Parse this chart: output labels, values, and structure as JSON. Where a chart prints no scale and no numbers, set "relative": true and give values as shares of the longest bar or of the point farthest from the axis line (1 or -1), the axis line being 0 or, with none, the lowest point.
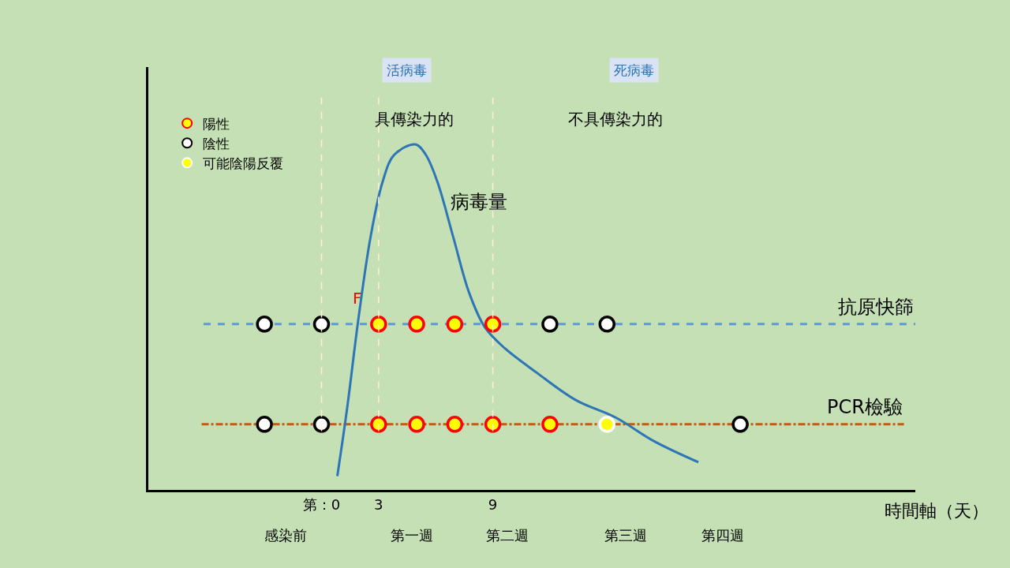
{
  "chart_data": {
    "type": "line",
    "relative": true,
    "xlabel": "時間軸（天）",
    "xlim": [
      -9.1,
      31.2
    ],
    "xticks": [
      {
        "value": 0,
        "label": "第：0"
      },
      3,
      9
    ],
    "series": [
      {
        "name": "抗原快篩",
        "color": "#5b9bd5",
        "x": [
          -6.2,
          31.2
        ],
        "values": [
          0.48,
          0.48
        ],
        "line_style": "dashed",
        "marker": "none"
      },
      {
        "name": "PCR檢驗",
        "color": "#c55a11",
        "x": [
          -6.3,
          30.6
        ],
        "values": [
          0.19,
          0.19
        ],
        "line_style": "dashdot",
        "marker": "none"
      },
      {
        "marker": "none",
        "color": "#2e75b6",
        "x": [
          0.83,
          1.33,
          1.95,
          2.57,
          3.2,
          3.82,
          4.94,
          5.48,
          6.1,
          6.93,
          7.76,
          8.59,
          9.63,
          11.29,
          13.36,
          15.44,
          17.5,
          19.8
        ],
        "values": [
          0.04,
          0.23,
          0.5,
          0.73,
          0.89,
          0.97,
          1.0,
          0.97,
          0.89,
          0.73,
          0.57,
          0.47,
          0.41,
          0.34,
          0.26,
          0.21,
          0.14,
          0.08
        ],
        "line_style": "solid"
      },
      {
        "type": "scatter",
        "marker": "circle",
        "name": "陽性",
        "color": "#ffff00",
        "x": [
          3,
          5,
          7,
          9,
          3,
          5,
          7,
          9,
          12
        ],
        "values": [
          0.48,
          0.48,
          0.48,
          0.48,
          0.19,
          0.19,
          0.19,
          0.19,
          0.19
        ]
      },
      {
        "type": "scatter",
        "marker": "circle",
        "name": "陰性",
        "color": "#ffffff",
        "x": [
          -3,
          0,
          12,
          15,
          -3,
          0,
          22
        ],
        "values": [
          0.48,
          0.48,
          0.48,
          0.48,
          0.19,
          0.19,
          0.19
        ]
      },
      {
        "type": "scatter",
        "marker": "circle",
        "name": "可能陰陽反覆",
        "color": "#ffff00",
        "x": [
          15
        ],
        "values": [
          0.19
        ]
      }
    ],
    "legend": "top left",
    "ref_lines": [
      {
        "axis": "x",
        "value": 0,
        "color": "#fff2cc",
        "line_style": "dashed"
      },
      {
        "axis": "x",
        "value": 3,
        "color": "#fff2cc",
        "line_style": "dashed"
      },
      {
        "axis": "x",
        "value": 9,
        "color": "#fff2cc",
        "line_style": "dashed"
      }
    ],
    "annotations": [
      "病毒量",
      "F",
      "活病毒",
      "死病毒",
      "具傳染力的",
      "不具傳染力的",
      "感染前",
      "第一週",
      "第二週",
      "第三週",
      "第四週"
    ]
  }
}
